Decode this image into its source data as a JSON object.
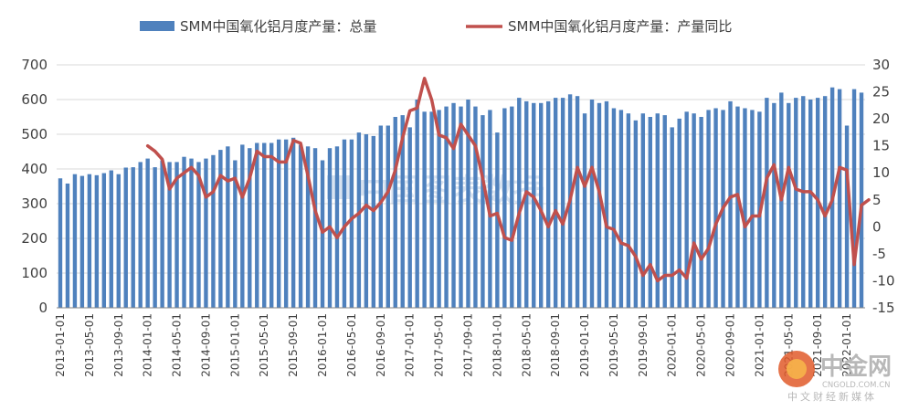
{
  "chart_data": {
    "type": "bar+line",
    "title": "",
    "left_axis": {
      "ylim": [
        0,
        700
      ],
      "ticks": [
        0,
        100,
        200,
        300,
        400,
        500,
        600,
        700
      ]
    },
    "right_axis": {
      "ylim": [
        -15,
        30
      ],
      "ticks": [
        -15,
        -10,
        -5,
        0,
        5,
        10,
        15,
        20,
        25,
        30
      ]
    },
    "x_tick_labels": [
      "2013-01-01",
      "2013-05-01",
      "2013-09-01",
      "2014-01-01",
      "2014-05-01",
      "2014-09-01",
      "2015-01-01",
      "2015-05-01",
      "2015-09-01",
      "2016-01-01",
      "2016-05-01",
      "2016-09-01",
      "2017-01-01",
      "2017-05-01",
      "2017-09-01",
      "2018-01-01",
      "2018-05-01",
      "2018-09-01",
      "2019-01-01",
      "2019-05-01",
      "2019-09-01",
      "2020-01-01",
      "2020-05-01",
      "2020-09-01",
      "2021-01-01",
      "2021-05-01",
      "2021-09-01",
      "2022-01-01"
    ],
    "start_month": "2013-01",
    "grid": true,
    "legend_position": "top",
    "series": [
      {
        "name": "SMM中国氧化铝月度产量：总量",
        "kind": "bar",
        "axis": "left",
        "color": "#4f81bd",
        "values": [
          373,
          358,
          385,
          380,
          385,
          382,
          388,
          396,
          385,
          404,
          405,
          420,
          430,
          405,
          425,
          420,
          420,
          435,
          430,
          420,
          430,
          440,
          455,
          465,
          425,
          470,
          460,
          475,
          475,
          475,
          485,
          485,
          490,
          470,
          465,
          460,
          425,
          460,
          465,
          485,
          485,
          505,
          500,
          495,
          525,
          525,
          550,
          555,
          520,
          600,
          565,
          565,
          570,
          580,
          590,
          580,
          600,
          580,
          555,
          570,
          505,
          575,
          580,
          605,
          595,
          590,
          590,
          595,
          605,
          605,
          615,
          610,
          560,
          600,
          590,
          595,
          575,
          570,
          560,
          540,
          560,
          550,
          560,
          555,
          520,
          545,
          565,
          560,
          550,
          570,
          575,
          570,
          595,
          580,
          575,
          570,
          565,
          605,
          590,
          620,
          590,
          605,
          610,
          600,
          605,
          610,
          635,
          630,
          525,
          630,
          620
        ]
      },
      {
        "name": "SMM中国氧化铝月度产量：产量同比",
        "kind": "line",
        "axis": "right",
        "color": "#c0504d",
        "start_index": 12,
        "values": [
          15,
          14,
          12.5,
          7,
          9,
          10,
          11,
          9.5,
          5.5,
          6.5,
          9.5,
          8.5,
          9,
          5.5,
          9,
          14,
          13,
          13,
          12,
          12,
          16,
          15.5,
          9.5,
          3,
          -1,
          0,
          -2,
          0,
          1.5,
          2.5,
          4,
          3,
          4.5,
          6.5,
          10.5,
          16.5,
          21.5,
          22,
          27.5,
          23.5,
          17,
          16.5,
          14.5,
          19,
          17,
          15,
          9,
          2,
          2.5,
          -2,
          -2.5,
          2.5,
          6.5,
          5.5,
          3,
          0,
          3,
          0.5,
          5,
          11,
          7.5,
          11,
          6.5,
          0,
          -0.5,
          -3,
          -3.5,
          -5.5,
          -9,
          -7,
          -10,
          -9,
          -9,
          -8,
          -9.5,
          -3,
          -6,
          -4,
          0.5,
          3.5,
          5.5,
          6,
          0,
          2,
          2,
          9,
          11.5,
          5,
          11,
          7,
          6.5,
          6.5,
          5,
          2,
          5,
          11,
          10.5,
          -7,
          4,
          5
        ]
      }
    ]
  },
  "watermarks": {
    "center_text": "中国图表数据",
    "brand_name": "中金网",
    "brand_url": "CNGOLD.COM.CN",
    "brand_tagline": "中文财经新媒体"
  }
}
